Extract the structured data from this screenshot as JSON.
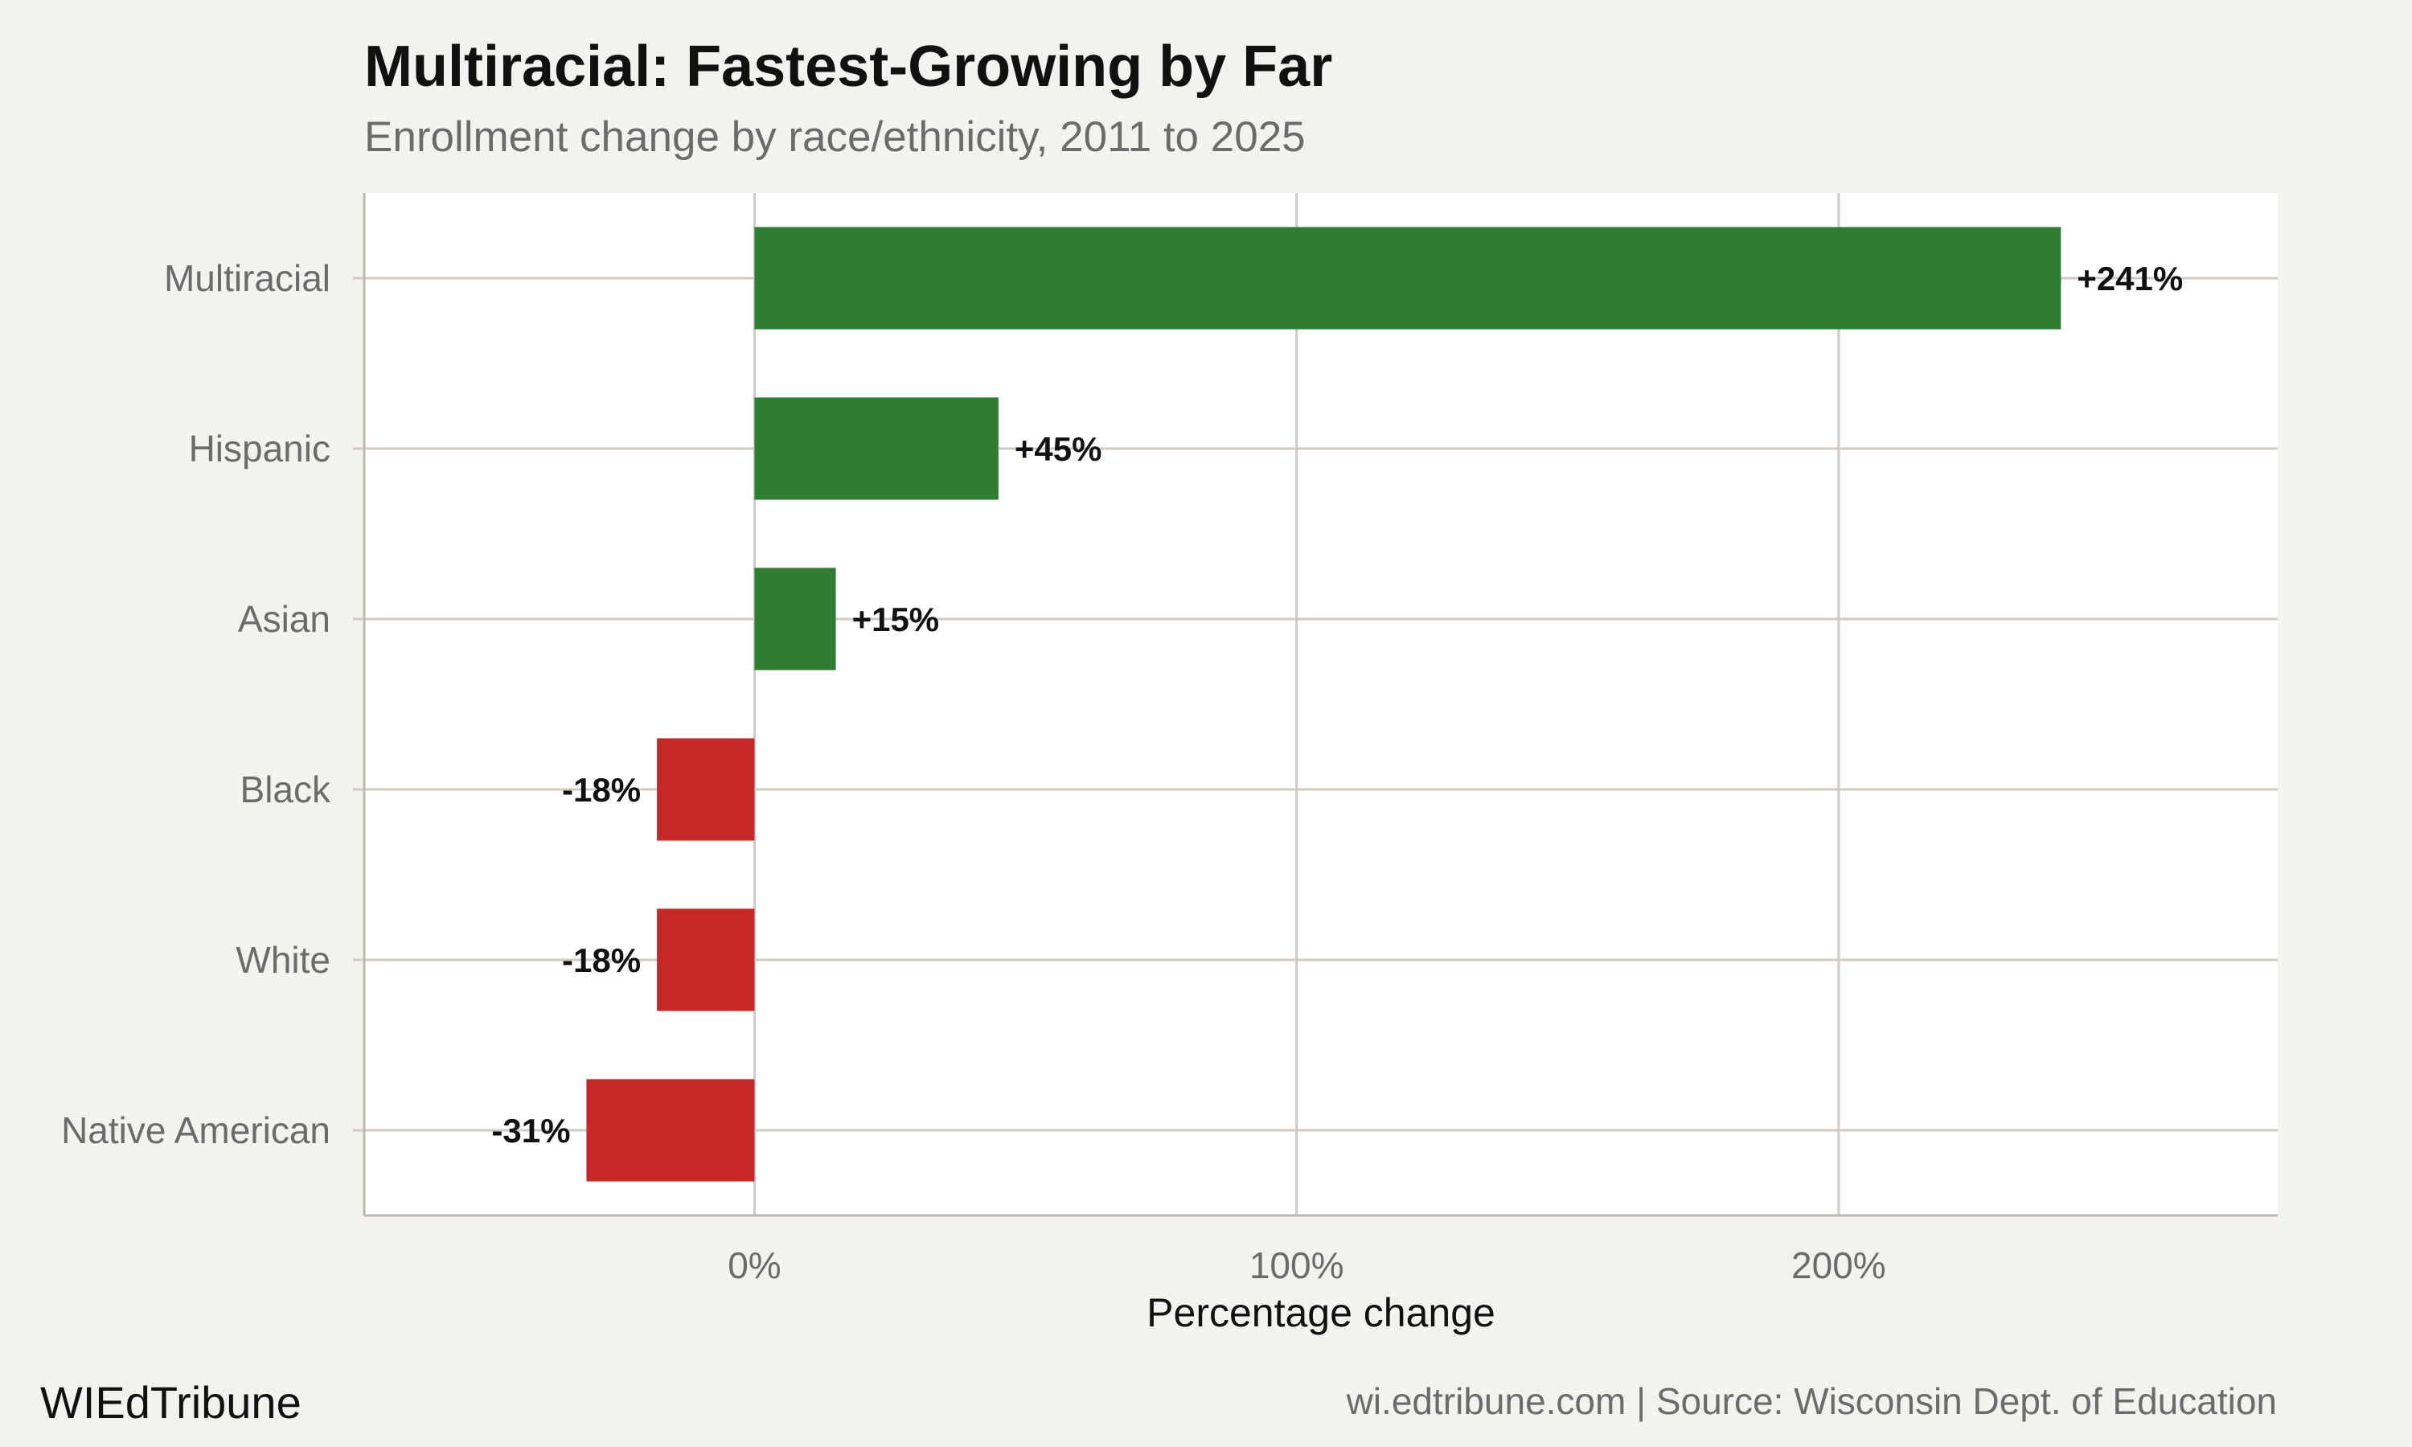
{
  "header": {
    "title": "Multiracial: Fastest-Growing by Far",
    "subtitle": "Enrollment change by race/ethnicity, 2011 to 2025"
  },
  "footer": {
    "brand": "WIEdTribune",
    "source": "wi.edtribune.com | Source: Wisconsin Dept. of Education"
  },
  "colors": {
    "positive": "#2e7d32",
    "negative": "#c62828",
    "panel": "#ffffff",
    "background": "#f4f2ee",
    "grid": "#cfcac3",
    "axis_text": "#6b6b6b"
  },
  "chart_data": {
    "type": "bar",
    "orientation": "horizontal",
    "categories": [
      "Multiracial",
      "Hispanic",
      "Asian",
      "Black",
      "White",
      "Native American"
    ],
    "values": [
      241,
      45,
      15,
      -18,
      -18,
      -31
    ],
    "data_labels": [
      "+241%",
      "+45%",
      "+15%",
      "-18%",
      "-18%",
      "-31%"
    ],
    "xlabel": "Percentage change",
    "ylabel": "",
    "xlim": [
      -72,
      281
    ],
    "x_ticks": [
      0,
      100,
      200
    ],
    "x_tick_labels": [
      "0%",
      "100%",
      "200%"
    ],
    "grid": true,
    "legend": "none"
  }
}
